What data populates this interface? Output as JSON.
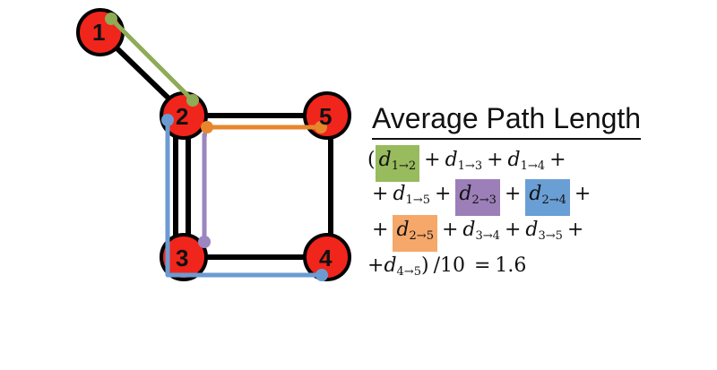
{
  "title": "Average Path Length",
  "nodes": [
    {
      "id": "1",
      "label": "1"
    },
    {
      "id": "2",
      "label": "2"
    },
    {
      "id": "3",
      "label": "3"
    },
    {
      "id": "4",
      "label": "4"
    },
    {
      "id": "5",
      "label": "5"
    }
  ],
  "edges": [
    [
      "1",
      "2"
    ],
    [
      "2",
      "3"
    ],
    [
      "2",
      "5"
    ],
    [
      "3",
      "4"
    ],
    [
      "4",
      "5"
    ]
  ],
  "highlighted_paths": [
    {
      "name": "d1→2",
      "color": "#8eab56",
      "nodes": [
        "1",
        "2"
      ]
    },
    {
      "name": "d2→3",
      "color": "#9b86c0",
      "nodes": [
        "2",
        "3"
      ]
    },
    {
      "name": "d2→4",
      "color": "#6b9bd2",
      "nodes": [
        "2",
        "3",
        "4"
      ]
    },
    {
      "name": "d2→5",
      "color": "#e8862c",
      "nodes": [
        "2",
        "5"
      ]
    }
  ],
  "colors": {
    "node_fill": "#f0251c",
    "node_stroke": "#000000",
    "edge": "#000000",
    "hl_green": "#98bb5d",
    "hl_purple": "#9c7fb8",
    "hl_blue": "#6a9fd5",
    "hl_orange": "#f5a86a"
  },
  "formula": {
    "open": "(",
    "plus": "+",
    "close": ")",
    "divide": "/10",
    "equals": "=",
    "result": "1.6",
    "d": "d",
    "t12": "1→2",
    "t13": "1→3",
    "t14": "1→4",
    "t15": "1→5",
    "t23": "2→3",
    "t24": "2→4",
    "t25": "2→5",
    "t34": "3→4",
    "t35": "3→5",
    "t45": "4→5"
  }
}
